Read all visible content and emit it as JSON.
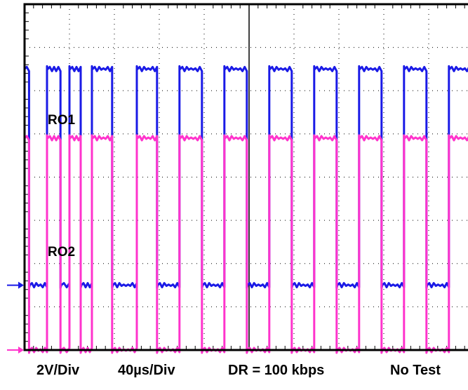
{
  "chart_data": {
    "type": "line",
    "title": "",
    "grid": true,
    "grid_divisions": {
      "x": 10,
      "y": 8
    },
    "x_units": "divisions",
    "y_units": "divisions",
    "xlim": [
      0,
      10
    ],
    "ylim": [
      0,
      8
    ],
    "series": [
      {
        "name": "RO1",
        "color": "#1a1ae6",
        "low": 1.5,
        "high": 6.5,
        "edges": [
          0.1,
          0.5,
          0.8,
          1.0,
          1.25,
          1.5,
          1.95,
          2.5,
          2.95,
          3.45,
          3.95,
          4.45,
          4.95,
          5.45,
          5.95,
          6.45,
          6.95,
          7.45,
          7.95,
          8.45,
          8.95,
          9.45,
          9.95
        ],
        "start_level": "high"
      },
      {
        "name": "RO2",
        "color": "#ff33cc",
        "low": 0.0,
        "high": 4.9,
        "edges": [
          0.1,
          0.5,
          0.8,
          1.0,
          1.25,
          1.5,
          1.95,
          2.5,
          2.95,
          3.45,
          3.95,
          4.45,
          4.95,
          5.45,
          5.95,
          6.45,
          6.95,
          7.45,
          7.95,
          8.45,
          8.95,
          9.45,
          9.95
        ],
        "start_level": "high"
      }
    ]
  },
  "markers": {
    "ro1_ground_color": "#1a1ae6",
    "ro2_ground_color": "#ff33cc"
  },
  "labels": {
    "ro1": "RO1",
    "ro2": "RO2"
  },
  "footer": {
    "volts_per_div": "2V/Div",
    "time_per_div": "40µs/Div",
    "data_rate": "DR = 100 kbps",
    "test": "No Test"
  }
}
